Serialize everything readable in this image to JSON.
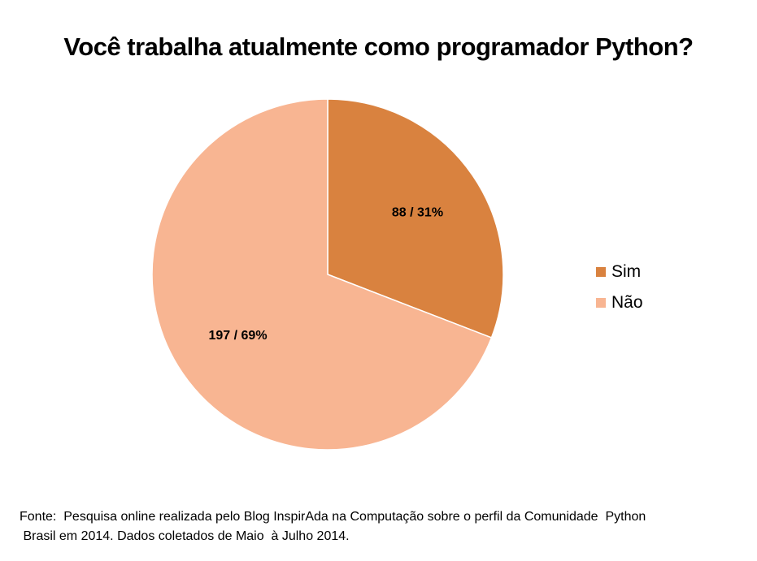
{
  "chart_data": {
    "type": "pie",
    "title": "Você trabalha atualmente como programador Python?",
    "categories": [
      "Sim",
      "Não"
    ],
    "values": [
      88,
      197
    ],
    "percentages": [
      31,
      69
    ],
    "data_labels": [
      "88 / 31%",
      "197 / 69%"
    ],
    "colors": [
      "#D9823F",
      "#F8B592"
    ],
    "legend_position": "right"
  },
  "footnote": {
    "line1": "Fonte:  Pesquisa online realizada pelo Blog InspirAda na Computação sobre o perfil da Comunidade  Python",
    "line2": " Brasil em 2014. Dados coletados de Maio  à Julho 2014."
  }
}
